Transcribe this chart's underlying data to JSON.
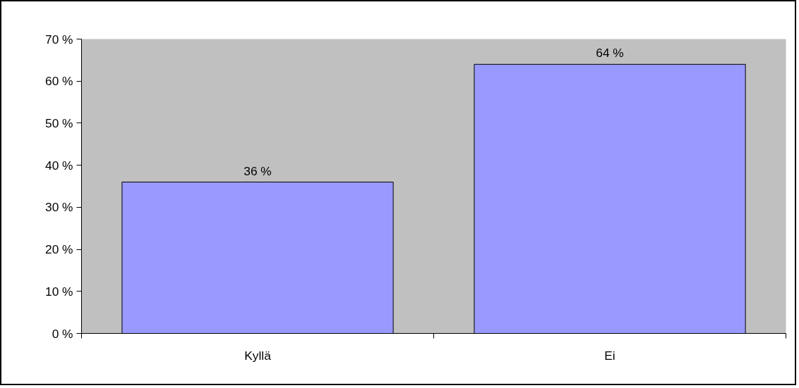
{
  "chart_data": {
    "type": "bar",
    "categories": [
      "Kyllä",
      "Ei"
    ],
    "values": [
      36,
      64
    ],
    "color": "#9999ff",
    "value_labels": [
      "36 %",
      "64 %"
    ],
    "ylim": [
      0,
      70
    ],
    "yticks": [
      {
        "value": 0,
        "label": "0 %"
      },
      {
        "value": 10,
        "label": "10 %"
      },
      {
        "value": 20,
        "label": "20 %"
      },
      {
        "value": 30,
        "label": "30 %"
      },
      {
        "value": 40,
        "label": "40 %"
      },
      {
        "value": 50,
        "label": "50 %"
      },
      {
        "value": 60,
        "label": "60 %"
      },
      {
        "value": 70,
        "label": "70 %"
      }
    ],
    "grid": false
  }
}
